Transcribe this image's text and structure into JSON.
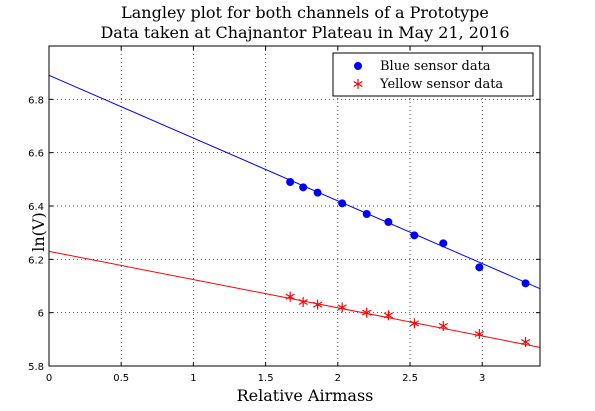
{
  "chart_data": {
    "type": "scatter",
    "title": [
      "Langley plot for both channels of a Prototype",
      "Data taken at Chajnantor Plateau in May 21, 2016"
    ],
    "xlabel": "Relative Airmass",
    "ylabel": "ln(V)",
    "xlim": [
      0,
      3.4
    ],
    "ylim": [
      5.8,
      7.0
    ],
    "xticks": [
      0,
      0.5,
      1,
      1.5,
      2,
      2.5,
      3
    ],
    "xtick_labels": [
      "0",
      "0.5",
      "1",
      "1.5",
      "2",
      "2.5",
      "3"
    ],
    "yticks": [
      5.8,
      6.0,
      6.2,
      6.4,
      6.6,
      6.8
    ],
    "ytick_labels": [
      "5.8",
      "6",
      "6.2",
      "6.4",
      "6.6",
      "6.8"
    ],
    "grid": true,
    "legend_position": "top-right",
    "series": [
      {
        "name": "Blue sensor data",
        "color": "#0000ff",
        "marker": "dot",
        "x": [
          1.67,
          1.76,
          1.86,
          2.03,
          2.2,
          2.35,
          2.53,
          2.73,
          2.98,
          3.3
        ],
        "y": [
          6.49,
          6.47,
          6.45,
          6.41,
          6.37,
          6.34,
          6.29,
          6.26,
          6.17,
          6.11
        ],
        "fit": {
          "color": "#0000ff",
          "x": [
            0,
            3.4
          ],
          "y": [
            6.89,
            6.09
          ]
        }
      },
      {
        "name": "Yellow sensor data",
        "color": "#ff0000",
        "marker": "star",
        "x": [
          1.67,
          1.76,
          1.86,
          2.03,
          2.2,
          2.35,
          2.53,
          2.73,
          2.98,
          3.3
        ],
        "y": [
          6.06,
          6.04,
          6.03,
          6.02,
          6.0,
          5.99,
          5.96,
          5.95,
          5.92,
          5.89
        ],
        "fit": {
          "color": "#ff0000",
          "x": [
            0,
            3.4
          ],
          "y": [
            6.23,
            5.87
          ]
        }
      }
    ]
  }
}
